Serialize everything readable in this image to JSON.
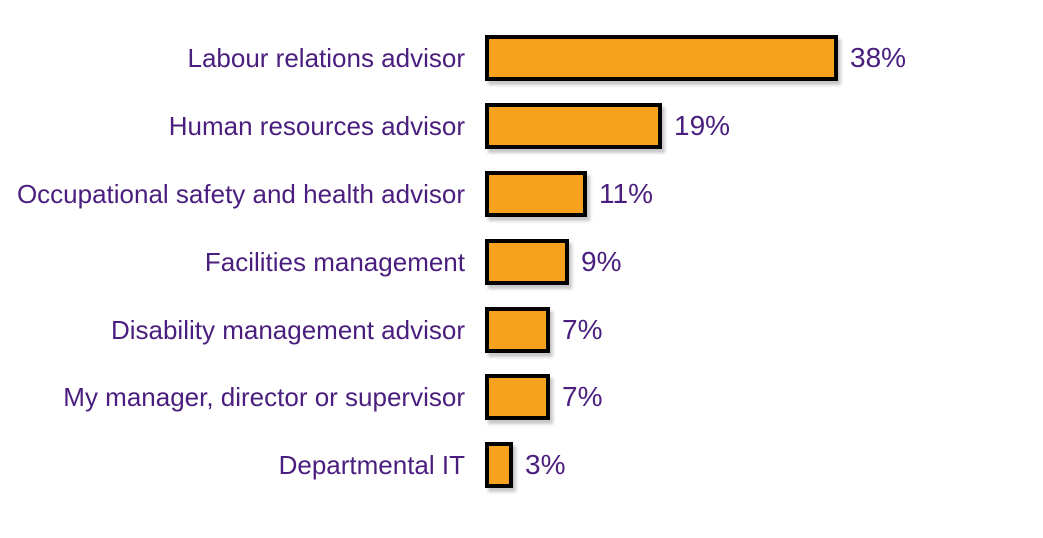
{
  "chart_data": {
    "type": "bar",
    "orientation": "horizontal",
    "title": "",
    "xlabel": "",
    "ylabel": "",
    "grid": false,
    "legend": null,
    "xlim": [
      0,
      40
    ],
    "categories": [
      "Labour relations advisor",
      "Human resources advisor",
      "Occupational safety and health advisor",
      "Facilities management",
      "Disability management advisor",
      "My manager, director or supervisor",
      "Departmental IT"
    ],
    "values": [
      38,
      19,
      11,
      9,
      7,
      7,
      3
    ],
    "value_labels": [
      "38%",
      "19%",
      "11%",
      "9%",
      "7%",
      "7%",
      "3%"
    ],
    "colors": {
      "bar_fill": "#F6A21F",
      "bar_border": "#000000",
      "text": "#4A1E7E",
      "background": "#FFFFFF"
    }
  }
}
